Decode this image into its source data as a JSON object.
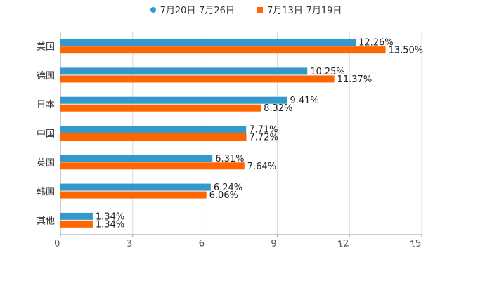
{
  "chart_data": {
    "type": "bar",
    "orientation": "horizontal",
    "categories": [
      "美国",
      "德国",
      "日本",
      "中国",
      "英国",
      "韩国",
      "其他"
    ],
    "series": [
      {
        "name": "7月20日-7月26日",
        "color": "#3399CC",
        "values": [
          12.26,
          10.25,
          9.41,
          7.71,
          6.31,
          6.24,
          1.34
        ],
        "labels": [
          "12.26%",
          "10.25%",
          "9.41%",
          "7.71%",
          "6.31%",
          "6.24%",
          "1.34%"
        ]
      },
      {
        "name": "7月13日-7月19日",
        "color": "#FF6600",
        "values": [
          13.5,
          11.37,
          8.32,
          7.72,
          7.64,
          6.06,
          1.34
        ],
        "labels": [
          "13.50%",
          "11.37%",
          "8.32%",
          "7.72%",
          "7.64%",
          "6.06%",
          "1.34%"
        ]
      }
    ],
    "xlim": [
      0,
      15
    ],
    "xticks": [
      "0",
      "3",
      "6",
      "9",
      "12",
      "15"
    ],
    "tick_values": [
      0,
      3,
      6,
      9,
      12,
      15
    ],
    "grid": true,
    "legend_position": "top-center"
  }
}
